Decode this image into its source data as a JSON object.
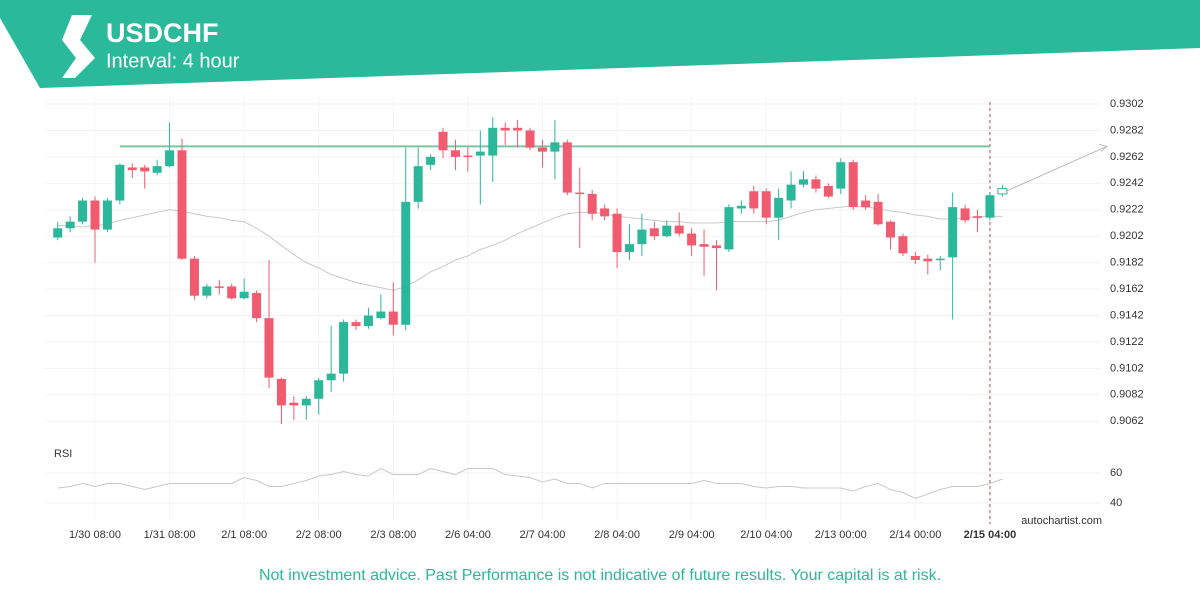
{
  "chart_data": {
    "type": "candlestick",
    "title": "USDCHF",
    "subtitle": "Interval: 4 hour",
    "categories": [
      null,
      null,
      null,
      "1/30 08:00",
      null,
      null,
      null,
      null,
      null,
      "1/31 08:00",
      null,
      null,
      null,
      null,
      null,
      "2/1 08:00",
      null,
      null,
      null,
      null,
      null,
      "2/2 08:00",
      null,
      null,
      null,
      null,
      null,
      "2/3 08:00",
      null,
      null,
      null,
      null,
      null,
      "2/6 04:00",
      null,
      null,
      null,
      null,
      null,
      "2/7 04:00",
      null,
      null,
      null,
      null,
      null,
      "2/8 04:00",
      null,
      null,
      null,
      null,
      null,
      "2/9 04:00",
      null,
      null,
      null,
      null,
      null,
      "2/10 04:00",
      null,
      null,
      null,
      null,
      null,
      "2/13 00:00",
      null,
      null,
      null,
      null,
      null,
      "2/14 00:00",
      null,
      null,
      null,
      null,
      null,
      "2/15 04:00",
      null
    ],
    "open": [
      0.9201,
      0.9208,
      0.9213,
      0.9229,
      0.9207,
      0.9229,
      0.9254,
      0.9254,
      0.925,
      0.9255,
      0.9267,
      0.9185,
      0.9157,
      0.9164,
      0.9164,
      0.9155,
      0.9159,
      0.914,
      0.9094,
      0.9076,
      0.9074,
      0.9079,
      0.9093,
      0.9098,
      0.9137,
      0.9134,
      0.914,
      0.9145,
      0.9135,
      0.9228,
      0.9256,
      0.9281,
      0.9267,
      0.9263,
      0.9263,
      0.9263,
      0.9284,
      0.9284,
      0.9282,
      0.9269,
      0.9266,
      0.9273,
      0.9235,
      0.9234,
      0.9223,
      0.9219,
      0.919,
      0.9196,
      0.9208,
      0.9202,
      0.921,
      0.9204,
      0.9196,
      0.9195,
      0.9192,
      0.9223,
      0.9236,
      0.9236,
      0.9216,
      0.9229,
      0.9241,
      0.9245,
      0.924,
      0.9238,
      0.9258,
      0.9229,
      0.9228,
      0.9213,
      0.9202,
      0.9187,
      0.9185,
      0.9184,
      0.9186,
      0.9223,
      0.9217,
      0.9216,
      0.9234
    ],
    "high": [
      0.9213,
      0.9217,
      0.9231,
      0.9232,
      0.9231,
      0.9257,
      0.9257,
      0.9256,
      0.926,
      0.9288,
      0.9276,
      0.9187,
      0.9166,
      0.9169,
      0.9166,
      0.917,
      0.9161,
      0.9184,
      0.9095,
      0.9081,
      0.9081,
      0.9095,
      0.9134,
      0.9139,
      0.9139,
      0.9148,
      0.9158,
      0.9167,
      0.9269,
      0.9269,
      0.9264,
      0.9284,
      0.9275,
      0.9269,
      0.9282,
      0.9292,
      0.9288,
      0.929,
      0.9284,
      0.9275,
      0.929,
      0.9275,
      0.9254,
      0.9237,
      0.9226,
      0.9223,
      0.9211,
      0.9219,
      0.9213,
      0.9214,
      0.922,
      0.9208,
      0.9207,
      0.9199,
      0.9226,
      0.9229,
      0.924,
      0.9238,
      0.9238,
      0.9251,
      0.9251,
      0.9248,
      0.9242,
      0.9261,
      0.926,
      0.9233,
      0.9234,
      0.9214,
      0.9204,
      0.919,
      0.9188,
      0.9187,
      0.9235,
      0.9226,
      0.9222,
      0.9235,
      0.9241
    ],
    "low": [
      0.9199,
      0.9205,
      0.9211,
      0.9182,
      0.9205,
      0.9226,
      0.9246,
      0.9238,
      0.9248,
      0.9254,
      0.9184,
      0.9154,
      0.9155,
      0.9158,
      0.9154,
      0.9154,
      0.9137,
      0.9087,
      0.906,
      0.9063,
      0.9063,
      0.9067,
      0.9084,
      0.9092,
      0.9131,
      0.9132,
      0.9139,
      0.9127,
      0.9131,
      0.9223,
      0.9252,
      0.9261,
      0.9252,
      0.9251,
      0.9226,
      0.9243,
      0.9271,
      0.9269,
      0.9267,
      0.9254,
      0.9245,
      0.9233,
      0.9193,
      0.9214,
      0.9214,
      0.9178,
      0.9184,
      0.9187,
      0.9199,
      0.9201,
      0.9202,
      0.9187,
      0.9172,
      0.9161,
      0.919,
      0.9219,
      0.9219,
      0.9211,
      0.9199,
      0.9223,
      0.9239,
      0.9235,
      0.9231,
      0.9234,
      0.9222,
      0.9222,
      0.921,
      0.9192,
      0.9187,
      0.9181,
      0.9173,
      0.9176,
      0.9139,
      0.9212,
      0.9205,
      0.9214,
      0.9232
    ],
    "close": [
      0.9208,
      0.9213,
      0.9229,
      0.9207,
      0.9229,
      0.9256,
      0.9252,
      0.9251,
      0.9255,
      0.9267,
      0.9185,
      0.9157,
      0.9164,
      0.9163,
      0.9155,
      0.916,
      0.914,
      0.9095,
      0.9074,
      0.9074,
      0.9079,
      0.9093,
      0.9098,
      0.9137,
      0.9134,
      0.9142,
      0.9145,
      0.9135,
      0.9228,
      0.9255,
      0.9262,
      0.9267,
      0.9262,
      0.9262,
      0.9266,
      0.9284,
      0.9282,
      0.9282,
      0.9269,
      0.9266,
      0.9273,
      0.9235,
      0.9234,
      0.9219,
      0.9217,
      0.919,
      0.9196,
      0.9207,
      0.9202,
      0.921,
      0.9204,
      0.9195,
      0.9194,
      0.9193,
      0.9224,
      0.9225,
      0.9223,
      0.9216,
      0.9231,
      0.9241,
      0.9245,
      0.9238,
      0.9232,
      0.9258,
      0.9224,
      0.9224,
      0.9211,
      0.9201,
      0.9189,
      0.9184,
      0.9183,
      0.9185,
      0.9224,
      0.9214,
      0.9216,
      0.9233,
      0.9238
    ],
    "up_color": "#2bb79a",
    "down_color": "#f15b6f",
    "moving_average": {
      "color": "#c8c8c8",
      "values": [
        0.921,
        0.921,
        0.9209,
        0.921,
        0.9211,
        0.9214,
        0.9216,
        0.9218,
        0.922,
        0.9222,
        0.9221,
        0.9219,
        0.9217,
        0.9216,
        0.9214,
        0.9213,
        0.9208,
        0.9202,
        0.9195,
        0.9188,
        0.9182,
        0.9178,
        0.9173,
        0.917,
        0.9167,
        0.9165,
        0.9163,
        0.9161,
        0.9164,
        0.9169,
        0.9175,
        0.9179,
        0.9184,
        0.9187,
        0.9192,
        0.9195,
        0.9199,
        0.9204,
        0.9208,
        0.9212,
        0.9216,
        0.9219,
        0.922,
        0.922,
        0.9219,
        0.9217,
        0.9216,
        0.9215,
        0.9214,
        0.9213,
        0.9213,
        0.9212,
        0.9212,
        0.9212,
        0.9213,
        0.9213,
        0.9213,
        0.9213,
        0.9214,
        0.9217,
        0.922,
        0.9222,
        0.9223,
        0.9224,
        0.9225,
        0.9224,
        0.9223,
        0.9221,
        0.922,
        0.9218,
        0.9217,
        0.9215,
        0.9215,
        0.9216,
        0.9217,
        0.9217,
        0.9217
      ]
    },
    "resistance": {
      "value": 0.927,
      "color": "#7cc4a2"
    },
    "ylim": [
      0.905,
      0.9312
    ],
    "yticks": [
      0.9302,
      0.9282,
      0.9262,
      0.9242,
      0.9222,
      0.9202,
      0.9182,
      0.9162,
      0.9142,
      0.9122,
      0.9102,
      0.9082,
      0.9062
    ],
    "grid": true,
    "rsi": {
      "label": "RSI",
      "color": "#c8c8c8",
      "ylim": [
        30,
        70
      ],
      "yticks": [
        60,
        40
      ],
      "values": [
        50,
        51,
        53,
        51,
        53,
        53,
        51,
        49,
        51,
        53,
        53,
        53,
        53,
        53,
        53,
        57,
        55,
        51,
        51,
        53,
        55,
        58,
        59,
        61,
        59,
        58,
        63,
        59,
        59,
        59,
        63,
        61,
        59,
        63,
        63,
        63,
        59,
        58,
        57,
        54,
        56,
        53,
        53,
        50,
        53,
        53,
        53,
        53,
        53,
        53,
        53,
        53,
        55,
        53,
        53,
        53,
        51,
        50,
        51,
        51,
        50,
        50,
        50,
        50,
        48,
        51,
        53,
        49,
        47,
        43,
        46,
        49,
        51,
        51,
        51,
        53,
        56
      ]
    }
  },
  "watermark": "autochartist.com",
  "disclaimer": "Not investment advice. Past Performance is not indicative of future results. Your capital is at risk."
}
